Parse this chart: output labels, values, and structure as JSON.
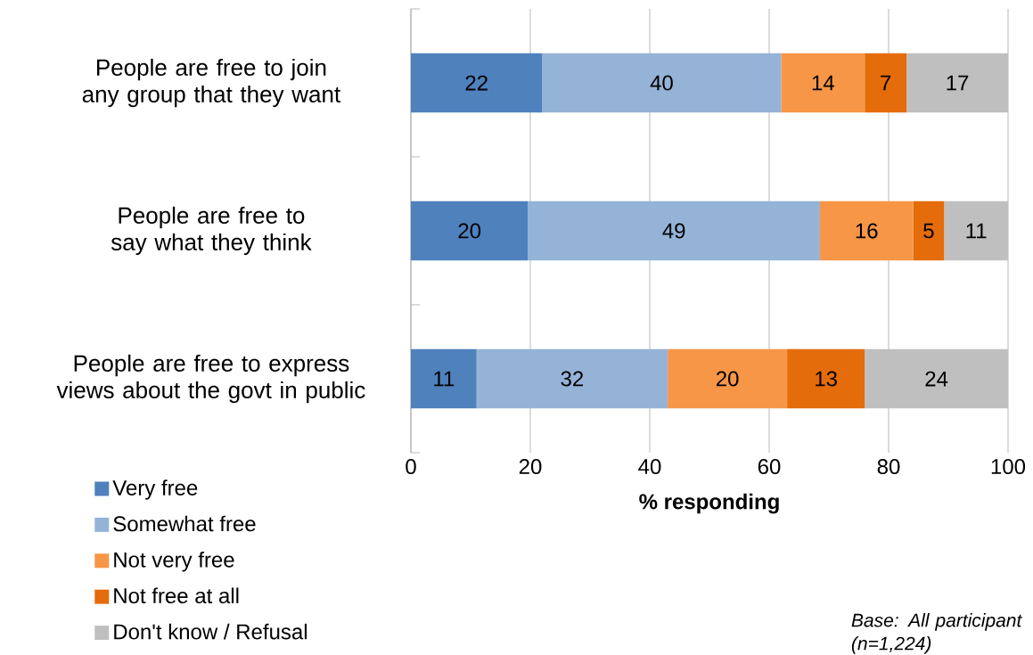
{
  "chart_data": {
    "type": "bar",
    "orientation": "horizontal",
    "stacked": true,
    "categories": [
      "People are free to join any group that they want",
      "People are free to say what they think",
      "People are free to express views about the govt in public"
    ],
    "series": [
      {
        "name": "Very free",
        "color": "#4f81bd",
        "values": [
          22,
          19.6,
          11
        ],
        "value_labels": [
          "22",
          "20",
          "11"
        ]
      },
      {
        "name": "Somewhat free",
        "color": "#95b3d7",
        "values": [
          40,
          48.9,
          32
        ],
        "value_labels": [
          "40",
          "49",
          "32"
        ]
      },
      {
        "name": "Not very free",
        "color": "#f79646",
        "values": [
          14,
          15.6,
          20
        ],
        "value_labels": [
          "14",
          "16",
          "20"
        ]
      },
      {
        "name": "Not free at all",
        "color": "#e46c0a",
        "values": [
          7,
          5.2,
          13
        ],
        "value_labels": [
          "7",
          "5",
          "13"
        ]
      },
      {
        "name": "Don't know / Refusal",
        "color": "#bfbfbf",
        "values": [
          17,
          10.7,
          24
        ],
        "value_labels": [
          "17",
          "11",
          "24"
        ]
      }
    ],
    "xlabel": "% responding",
    "xlim": [
      0,
      100
    ],
    "xticks": [
      0,
      20,
      40,
      60,
      80,
      100
    ],
    "grid": "x",
    "legend": "bottom left",
    "annotations": [
      "Base: All participant (n=1,224)"
    ]
  }
}
